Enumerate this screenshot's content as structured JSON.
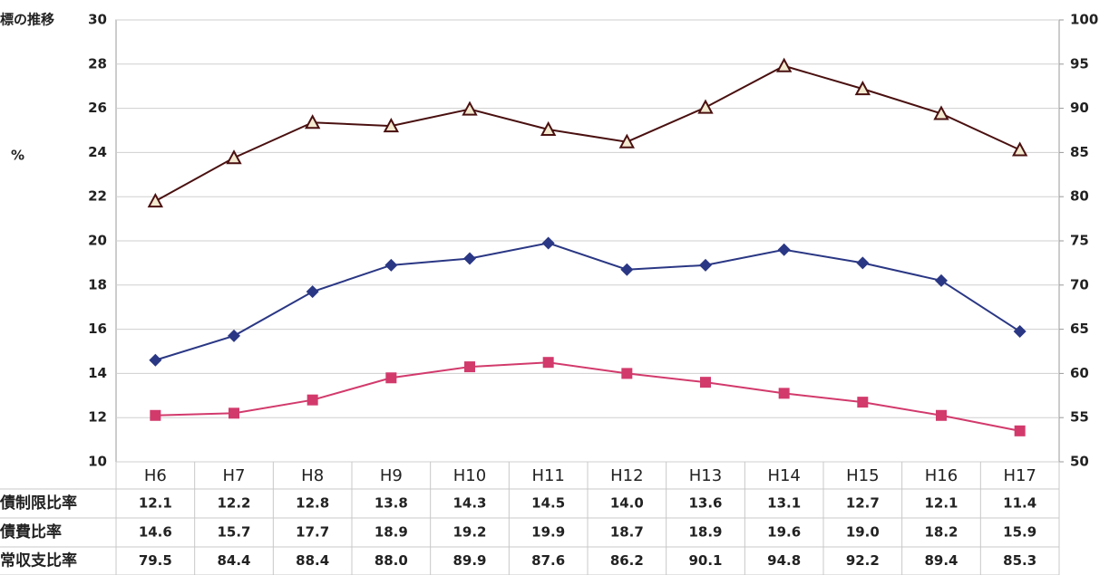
{
  "chart_data": {
    "type": "line",
    "title": "標の推移",
    "ylabel": "%",
    "categories": [
      "H6",
      "H7",
      "H8",
      "H9",
      "H10",
      "H11",
      "H12",
      "H13",
      "H14",
      "H15",
      "H16",
      "H17"
    ],
    "series": [
      {
        "name": "債制限比率",
        "color": "#d23a6c",
        "marker": "square",
        "values": [
          12.1,
          12.2,
          12.8,
          13.8,
          14.3,
          14.5,
          14.0,
          13.6,
          13.1,
          12.7,
          12.1,
          11.4
        ],
        "value_labels": [
          "12.1",
          "12.2",
          "12.8",
          "13.8",
          "14.3",
          "14.5",
          "14.0",
          "13.6",
          "13.1",
          "12.7",
          "12.1",
          "11.4"
        ]
      },
      {
        "name": "債費比率",
        "color": "#2a3784",
        "marker": "diamond",
        "values": [
          14.6,
          15.7,
          17.7,
          18.9,
          19.2,
          19.9,
          18.7,
          18.9,
          19.6,
          19.0,
          18.2,
          15.9
        ],
        "value_labels": [
          "14.6",
          "15.7",
          "17.7",
          "18.9",
          "19.2",
          "19.9",
          "18.7",
          "18.9",
          "19.6",
          "19.0",
          "18.2",
          "15.9"
        ]
      },
      {
        "name": "常収支比率",
        "color": "#4a1010",
        "marker": "triangle",
        "axis": "y2",
        "values": [
          79.5,
          84.4,
          88.4,
          88.0,
          89.9,
          87.6,
          86.2,
          90.1,
          94.8,
          92.2,
          89.4,
          85.3
        ],
        "value_labels": [
          "79.5",
          "84.4",
          "88.4",
          "88.0",
          "89.9",
          "87.6",
          "86.2",
          "90.1",
          "94.8",
          "92.2",
          "89.4",
          "85.3"
        ]
      }
    ],
    "ylim": [
      10,
      30
    ],
    "yticks": [
      10,
      12,
      14,
      16,
      18,
      20,
      22,
      24,
      26,
      28,
      30
    ],
    "y2lim": [
      50,
      100
    ],
    "y2ticks": [
      50,
      55,
      60,
      65,
      70,
      75,
      80,
      85,
      90,
      95,
      100
    ],
    "grid": true
  }
}
